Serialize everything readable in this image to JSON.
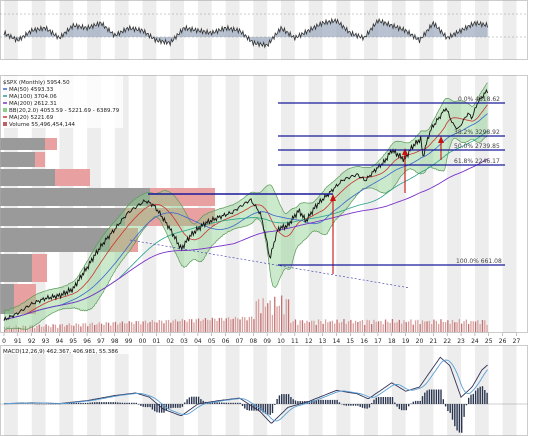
{
  "chart_data": {
    "type": "line",
    "legend": {
      "symbol": "$SPX (Monthly) 5954.50",
      "ma50": "MA(50) 4593.33",
      "ma100": "MA(100) 3704.06",
      "ma200": "MA(200) 2612.31",
      "bb": "BB(20,2.0) 4053.59 - 5221.69 - 6389.79",
      "ma20": "MA(20) 5221.69",
      "volume": "Volume 55,496,454,144"
    },
    "macd_legend": "MACD(12,26,9) 462.367, 406.981, 55.386",
    "x_ticks": [
      "0",
      "91",
      "92",
      "93",
      "94",
      "95",
      "96",
      "97",
      "98",
      "99",
      "00",
      "01",
      "02",
      "03",
      "04",
      "05",
      "06",
      "07",
      "08",
      "09",
      "10",
      "11",
      "12",
      "13",
      "14",
      "15",
      "16",
      "17",
      "18",
      "19",
      "20",
      "21",
      "22",
      "23",
      "24",
      "25",
      "26",
      "27"
    ],
    "fib_levels": [
      {
        "label": "0.0% 4818.62"
      },
      {
        "label": "38.2% 3298.92"
      },
      {
        "label": "50.0% 2739.85"
      },
      {
        "label": "61.8% 2246.17"
      },
      {
        "label": "100.0% 661.08"
      }
    ],
    "series": {
      "price_anchors": [
        [
          1990.0,
          340
        ],
        [
          1991.0,
          370
        ],
        [
          1992.0,
          415
        ],
        [
          1993.0,
          445
        ],
        [
          1994.0,
          460
        ],
        [
          1995.0,
          500
        ],
        [
          1996.0,
          650
        ],
        [
          1997.0,
          850
        ],
        [
          1998.0,
          1050
        ],
        [
          1999.0,
          1300
        ],
        [
          2000.2,
          1500
        ],
        [
          2000.8,
          1420
        ],
        [
          2001.5,
          1200
        ],
        [
          2002.5,
          900
        ],
        [
          2002.8,
          820
        ],
        [
          2003.5,
          980
        ],
        [
          2004.5,
          1130
        ],
        [
          2005.5,
          1220
        ],
        [
          2006.5,
          1300
        ],
        [
          2007.8,
          1520
        ],
        [
          2008.5,
          1280
        ],
        [
          2009.2,
          720
        ],
        [
          2009.8,
          1060
        ],
        [
          2010.5,
          1100
        ],
        [
          2011.3,
          1330
        ],
        [
          2011.8,
          1160
        ],
        [
          2012.5,
          1400
        ],
        [
          2013.5,
          1650
        ],
        [
          2014.5,
          1950
        ],
        [
          2015.5,
          2080
        ],
        [
          2016.1,
          1930
        ],
        [
          2016.8,
          2200
        ],
        [
          2017.5,
          2450
        ],
        [
          2018.0,
          2820
        ],
        [
          2018.9,
          2500
        ],
        [
          2019.5,
          2950
        ],
        [
          2020.1,
          3250
        ],
        [
          2020.25,
          2580
        ],
        [
          2020.8,
          3620
        ],
        [
          2021.5,
          4300
        ],
        [
          2021.9,
          4770
        ],
        [
          2022.4,
          3900
        ],
        [
          2022.8,
          3650
        ],
        [
          2023.5,
          4450
        ],
        [
          2023.8,
          4200
        ],
        [
          2024.2,
          5100
        ],
        [
          2024.8,
          5800
        ],
        [
          2024.95,
          5954
        ]
      ],
      "top_oscillator_anchors": [
        [
          1990.0,
          50
        ],
        [
          1991.0,
          35
        ],
        [
          1992.0,
          55
        ],
        [
          1993.0,
          60
        ],
        [
          1994.0,
          40
        ],
        [
          1995.0,
          65
        ],
        [
          1996.0,
          60
        ],
        [
          1997.0,
          70
        ],
        [
          1998.0,
          45
        ],
        [
          1999.0,
          60
        ],
        [
          2000.0,
          55
        ],
        [
          2001.0,
          35
        ],
        [
          2002.0,
          30
        ],
        [
          2003.0,
          60
        ],
        [
          2004.0,
          55
        ],
        [
          2005.0,
          50
        ],
        [
          2006.0,
          60
        ],
        [
          2007.0,
          55
        ],
        [
          2008.0,
          30
        ],
        [
          2009.0,
          25
        ],
        [
          2010.0,
          60
        ],
        [
          2011.0,
          40
        ],
        [
          2012.0,
          55
        ],
        [
          2013.0,
          70
        ],
        [
          2014.0,
          75
        ],
        [
          2015.0,
          50
        ],
        [
          2016.0,
          40
        ],
        [
          2017.0,
          75
        ],
        [
          2018.0,
          65
        ],
        [
          2019.0,
          55
        ],
        [
          2020.0,
          35
        ],
        [
          2021.0,
          70
        ],
        [
          2022.0,
          40
        ],
        [
          2023.0,
          55
        ],
        [
          2024.0,
          70
        ],
        [
          2025.0,
          65
        ]
      ],
      "macd_anchors": [
        [
          1990.0,
          5
        ],
        [
          1992.0,
          15
        ],
        [
          1994.0,
          5
        ],
        [
          1996.0,
          40
        ],
        [
          1998.0,
          100
        ],
        [
          1999.5,
          130
        ],
        [
          2000.5,
          80
        ],
        [
          2001.5,
          -60
        ],
        [
          2002.8,
          -140
        ],
        [
          2004.0,
          0
        ],
        [
          2005.5,
          40
        ],
        [
          2007.0,
          70
        ],
        [
          2008.5,
          -90
        ],
        [
          2009.3,
          -230
        ],
        [
          2010.5,
          -40
        ],
        [
          2012.0,
          30
        ],
        [
          2014.0,
          160
        ],
        [
          2015.5,
          120
        ],
        [
          2016.3,
          60
        ],
        [
          2018.0,
          250
        ],
        [
          2019.0,
          150
        ],
        [
          2020.0,
          200
        ],
        [
          2021.5,
          550
        ],
        [
          2022.2,
          450
        ],
        [
          2023.0,
          80
        ],
        [
          2023.8,
          200
        ],
        [
          2024.5,
          400
        ],
        [
          2025.0,
          470
        ]
      ]
    }
  }
}
